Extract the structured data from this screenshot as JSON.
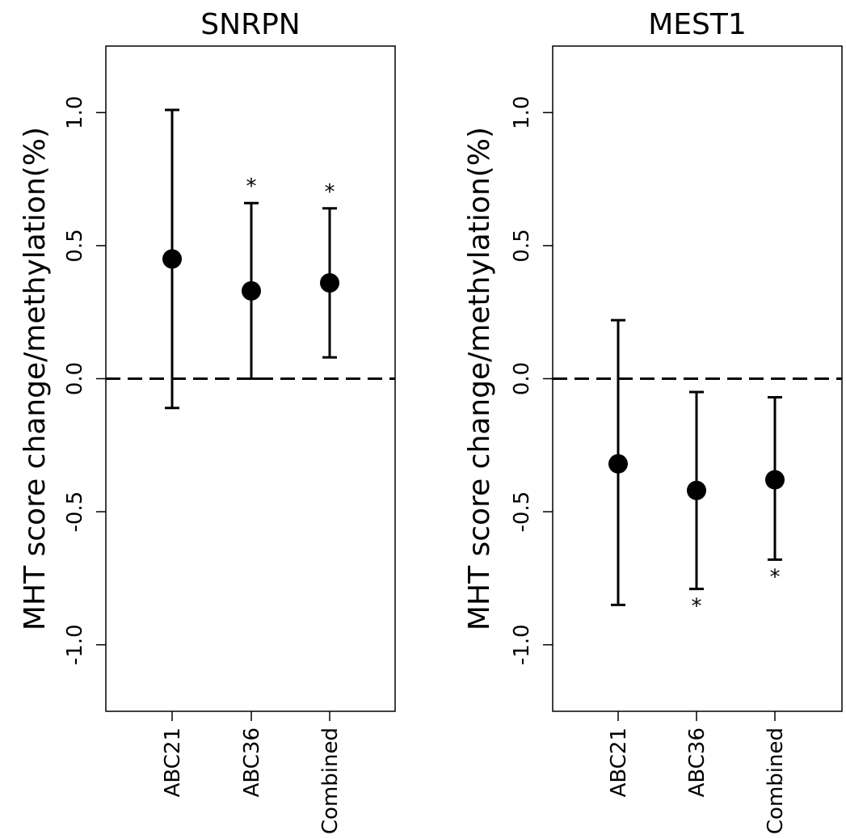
{
  "chart_data": [
    {
      "type": "scatter",
      "title": "SNRPN",
      "ylabel": "MHT score change/methylation(%)",
      "ylim": [
        -1.25,
        1.25
      ],
      "yticks": [
        "-1.0",
        "-0.5",
        "0.0",
        "0.5",
        "1.0"
      ],
      "ytick_values": [
        -1.0,
        -0.5,
        0.0,
        0.5,
        1.0
      ],
      "reference_line": 0.0,
      "categories": [
        "ABC21",
        "ABC36",
        "Combined"
      ],
      "values": [
        0.45,
        0.33,
        0.36
      ],
      "lower": [
        -0.11,
        0.0,
        0.08
      ],
      "upper": [
        1.01,
        0.66,
        0.64
      ],
      "annotations": [
        "",
        "*",
        "*"
      ],
      "annotation_side": "top"
    },
    {
      "type": "scatter",
      "title": "MEST1",
      "ylabel": "MHT score change/methylation(%)",
      "ylim": [
        -1.25,
        1.25
      ],
      "yticks": [
        "-1.0",
        "-0.5",
        "0.0",
        "0.5",
        "1.0"
      ],
      "ytick_values": [
        -1.0,
        -0.5,
        0.0,
        0.5,
        1.0
      ],
      "reference_line": 0.0,
      "categories": [
        "ABC21",
        "ABC36",
        "Combined"
      ],
      "values": [
        -0.32,
        -0.42,
        -0.38
      ],
      "lower": [
        -0.85,
        -0.79,
        -0.68
      ],
      "upper": [
        0.22,
        -0.05,
        -0.07
      ],
      "annotations": [
        "",
        "*",
        "*"
      ],
      "annotation_side": "bottom"
    }
  ]
}
